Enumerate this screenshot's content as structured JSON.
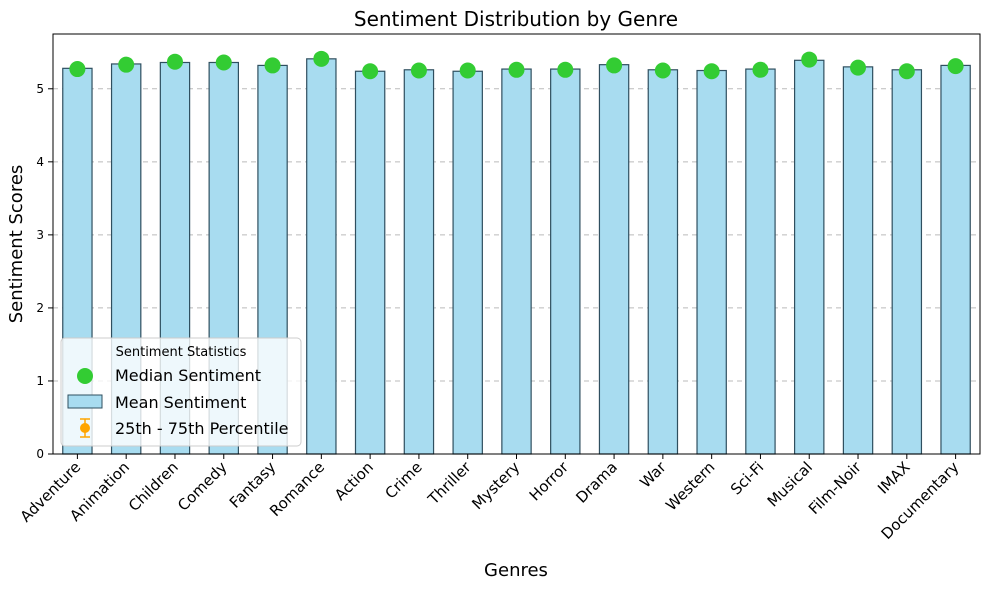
{
  "chart_data": {
    "type": "bar",
    "title": "Sentiment Distribution by Genre",
    "xlabel": "Genres",
    "ylabel": "Sentiment Scores",
    "ylim": [
      0,
      5.75
    ],
    "yticks": [
      0,
      1,
      2,
      3,
      4,
      5
    ],
    "grid": "y-dashed",
    "legend_position": "lower-left",
    "legend_title": "Sentiment Statistics",
    "categories": [
      "Adventure",
      "Animation",
      "Children",
      "Comedy",
      "Fantasy",
      "Romance",
      "Action",
      "Crime",
      "Thriller",
      "Mystery",
      "Horror",
      "Drama",
      "War",
      "Western",
      "Sci-Fi",
      "Musical",
      "Film-Noir",
      "IMAX",
      "Documentary"
    ],
    "series": [
      {
        "name": "Mean Sentiment",
        "kind": "bar",
        "color": "#a8dcf0",
        "edge_color": "#2f4f5f",
        "values": [
          5.28,
          5.34,
          5.36,
          5.36,
          5.32,
          5.41,
          5.24,
          5.26,
          5.24,
          5.27,
          5.27,
          5.33,
          5.26,
          5.25,
          5.27,
          5.39,
          5.3,
          5.26,
          5.32
        ]
      },
      {
        "name": "Median Sentiment",
        "kind": "scatter",
        "color": "#33cc33",
        "values": [
          5.27,
          5.33,
          5.37,
          5.36,
          5.32,
          5.41,
          5.24,
          5.25,
          5.25,
          5.26,
          5.26,
          5.32,
          5.25,
          5.24,
          5.26,
          5.4,
          5.29,
          5.24,
          5.31
        ]
      },
      {
        "name": "25th - 75th Percentile",
        "kind": "errorbar",
        "color": "#ffa500",
        "low": [
          5.24,
          5.3,
          5.33,
          5.32,
          5.29,
          5.37,
          5.21,
          5.22,
          5.22,
          5.23,
          5.23,
          5.28,
          5.22,
          5.21,
          5.23,
          5.36,
          5.25,
          5.21,
          5.27
        ],
        "high": [
          5.3,
          5.36,
          5.4,
          5.4,
          5.36,
          5.45,
          5.27,
          5.28,
          5.28,
          5.29,
          5.29,
          5.38,
          5.29,
          5.27,
          5.29,
          5.43,
          5.33,
          5.27,
          5.38
        ]
      }
    ]
  }
}
